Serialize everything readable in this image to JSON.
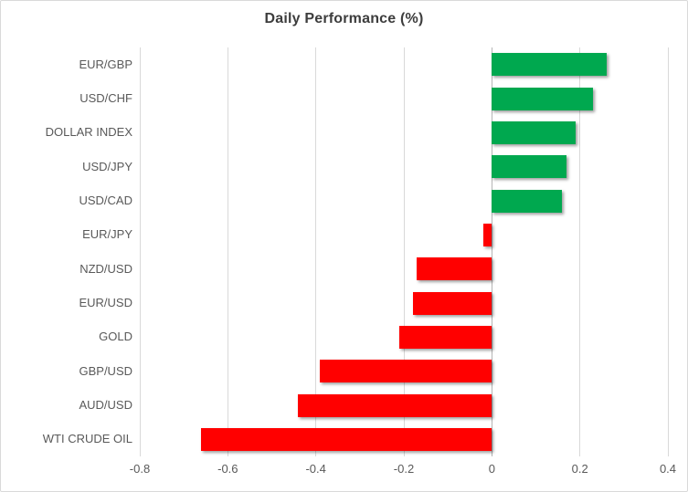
{
  "chart_data": {
    "type": "bar",
    "orientation": "horizontal",
    "title": "Daily Performance (%)",
    "categories": [
      "EUR/GBP",
      "USD/CHF",
      "DOLLAR INDEX",
      "USD/JPY",
      "USD/CAD",
      "EUR/JPY",
      "NZD/USD",
      "EUR/USD",
      "GOLD",
      "GBP/USD",
      "AUD/USD",
      "WTI CRUDE OIL"
    ],
    "values": [
      0.26,
      0.23,
      0.19,
      0.17,
      0.16,
      -0.02,
      -0.17,
      -0.18,
      -0.21,
      -0.39,
      -0.44,
      -0.66
    ],
    "xlim": [
      -0.8,
      0.4
    ],
    "xticks": [
      -0.8,
      -0.6,
      -0.4,
      -0.2,
      0,
      0.2,
      0.4
    ],
    "xtick_labels": [
      "-0.8",
      "-0.6",
      "-0.4",
      "-0.2",
      "0",
      "0.2",
      "0.4"
    ],
    "grid": true,
    "legend": "none",
    "colors": {
      "positive": "#00a84f",
      "negative": "#ff0000",
      "gridline": "#d9d9d9",
      "zero_axis": "#b5b5b5",
      "axis_text": "#595959",
      "title_text": "#3d3d3d",
      "frame_border": "#d9d9d9",
      "background": "#ffffff"
    }
  }
}
